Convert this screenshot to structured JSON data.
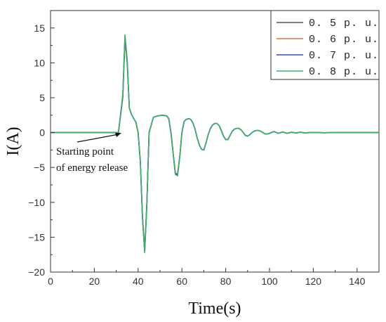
{
  "chart_data": {
    "type": "line",
    "title": "",
    "xlabel": "Time(s)",
    "ylabel": "I(A)",
    "xlim": [
      0,
      150
    ],
    "ylim": [
      -20,
      17.5
    ],
    "x_ticks": [
      0,
      20,
      40,
      60,
      80,
      100,
      120,
      140
    ],
    "y_ticks": [
      -20,
      -15,
      -10,
      -5,
      0,
      5,
      10,
      15
    ],
    "grid": false,
    "legend_position": "top-right",
    "annotation": {
      "lines": [
        "Starting point",
        "of energy release"
      ],
      "point": [
        32,
        0
      ]
    },
    "series": [
      {
        "name": "0. 5  p. u.",
        "color": "#555555",
        "x": [
          0,
          31,
          32,
          33,
          34,
          35,
          36,
          37,
          38,
          39,
          40,
          41,
          42,
          43,
          44,
          45,
          47,
          49,
          51,
          53,
          54,
          55,
          56,
          57,
          58,
          59,
          60,
          61,
          62,
          63,
          64,
          65,
          66,
          67,
          68,
          69,
          70,
          71,
          72,
          73,
          74,
          75,
          76,
          77,
          78,
          79,
          80,
          81,
          82,
          83,
          84,
          85,
          86,
          87,
          88,
          89,
          90,
          91,
          92,
          93,
          94,
          95,
          96,
          97,
          98,
          99,
          100,
          102,
          104,
          106,
          108,
          110,
          112,
          114,
          116,
          120,
          125,
          130,
          140,
          150
        ],
        "values": [
          0,
          0,
          2.5,
          5,
          13.5,
          10,
          3.5,
          2.6,
          2,
          1.5,
          0,
          -4,
          -12,
          -16.8,
          -10,
          0,
          2.2,
          2.4,
          2.5,
          2.4,
          2,
          0,
          -3,
          -5.8,
          -6,
          -3.5,
          0,
          1.6,
          1.9,
          2,
          1.9,
          1.4,
          0.5,
          -0.8,
          -1.8,
          -2.4,
          -2.5,
          -1.5,
          -0.3,
          0.6,
          1.1,
          1.3,
          1.3,
          1,
          0.3,
          -0.5,
          -1,
          -1,
          -0.4,
          0.2,
          0.5,
          0.6,
          0.6,
          0.4,
          0,
          -0.4,
          -0.5,
          -0.3,
          0,
          0.2,
          0.3,
          0.3,
          0.2,
          0,
          -0.2,
          -0.2,
          -0.1,
          0.15,
          -0.1,
          0.1,
          -0.1,
          0.05,
          -0.05,
          0.05,
          -0.03,
          0.02,
          -0.02,
          0.01,
          0,
          0
        ]
      },
      {
        "name": "0. 6  p. u.",
        "color": "#c87a4a",
        "x": [
          0,
          31,
          32,
          33,
          34,
          35,
          36,
          37,
          38,
          39,
          40,
          41,
          42,
          43,
          44,
          45,
          47,
          49,
          51,
          53,
          54,
          55,
          56,
          57,
          58,
          59,
          60,
          61,
          62,
          63,
          64,
          65,
          66,
          67,
          68,
          69,
          70,
          71,
          72,
          73,
          74,
          75,
          76,
          77,
          78,
          79,
          80,
          81,
          82,
          83,
          84,
          85,
          86,
          87,
          88,
          89,
          90,
          91,
          92,
          93,
          94,
          95,
          96,
          97,
          98,
          99,
          100,
          102,
          104,
          106,
          108,
          110,
          112,
          114,
          116,
          120,
          125,
          130,
          140,
          150
        ],
        "values": [
          0,
          0,
          2.6,
          5.2,
          13.7,
          10.2,
          3.5,
          2.6,
          2,
          1.5,
          0,
          -4.1,
          -12.2,
          -17,
          -10.1,
          0,
          2.2,
          2.4,
          2.5,
          2.4,
          2,
          0,
          -3,
          -5.9,
          -6.1,
          -3.5,
          0,
          1.6,
          1.9,
          2,
          1.9,
          1.4,
          0.5,
          -0.8,
          -1.8,
          -2.4,
          -2.5,
          -1.5,
          -0.3,
          0.6,
          1.1,
          1.3,
          1.3,
          1,
          0.3,
          -0.5,
          -1,
          -1,
          -0.4,
          0.2,
          0.5,
          0.6,
          0.6,
          0.4,
          0,
          -0.4,
          -0.5,
          -0.3,
          0,
          0.2,
          0.3,
          0.3,
          0.2,
          0,
          -0.2,
          -0.2,
          -0.1,
          0.15,
          -0.1,
          0.1,
          -0.1,
          0.05,
          -0.05,
          0.05,
          -0.03,
          0.02,
          -0.02,
          0.01,
          0,
          0
        ]
      },
      {
        "name": "0. 7  p. u.",
        "color": "#3a4fc0",
        "x": [
          0,
          31,
          32,
          33,
          34,
          35,
          36,
          37,
          38,
          39,
          40,
          41,
          42,
          43,
          44,
          45,
          47,
          49,
          51,
          53,
          54,
          55,
          56,
          57,
          58,
          59,
          60,
          61,
          62,
          63,
          64,
          65,
          66,
          67,
          68,
          69,
          70,
          71,
          72,
          73,
          74,
          75,
          76,
          77,
          78,
          79,
          80,
          81,
          82,
          83,
          84,
          85,
          86,
          87,
          88,
          89,
          90,
          91,
          92,
          93,
          94,
          95,
          96,
          97,
          98,
          99,
          100,
          102,
          104,
          106,
          108,
          110,
          112,
          114,
          116,
          120,
          125,
          130,
          140,
          150
        ],
        "values": [
          0,
          0,
          2.6,
          5.3,
          13.8,
          10.3,
          3.5,
          2.6,
          2,
          1.5,
          0,
          -4.1,
          -12.3,
          -17.1,
          -10.2,
          0,
          2.2,
          2.4,
          2.5,
          2.4,
          2,
          0,
          -3,
          -5.9,
          -6.1,
          -3.5,
          0,
          1.6,
          1.9,
          2,
          1.9,
          1.4,
          0.5,
          -0.8,
          -1.8,
          -2.4,
          -2.5,
          -1.5,
          -0.3,
          0.6,
          1.1,
          1.3,
          1.3,
          1,
          0.3,
          -0.5,
          -1,
          -1,
          -0.4,
          0.2,
          0.5,
          0.6,
          0.6,
          0.4,
          0,
          -0.4,
          -0.5,
          -0.3,
          0,
          0.2,
          0.3,
          0.3,
          0.2,
          0,
          -0.2,
          -0.2,
          -0.1,
          0.15,
          -0.1,
          0.1,
          -0.1,
          0.05,
          -0.05,
          0.05,
          -0.03,
          0.02,
          -0.02,
          0.01,
          0,
          0
        ]
      },
      {
        "name": "0. 8  p. u.",
        "color": "#3fae6a",
        "x": [
          0,
          31,
          32,
          33,
          34,
          35,
          36,
          37,
          38,
          39,
          40,
          41,
          42,
          43,
          44,
          45,
          47,
          49,
          51,
          53,
          54,
          55,
          56,
          57,
          58,
          59,
          60,
          61,
          62,
          63,
          64,
          65,
          66,
          67,
          68,
          69,
          70,
          71,
          72,
          73,
          74,
          75,
          76,
          77,
          78,
          79,
          80,
          81,
          82,
          83,
          84,
          85,
          86,
          87,
          88,
          89,
          90,
          91,
          92,
          93,
          94,
          95,
          96,
          97,
          98,
          99,
          100,
          102,
          104,
          106,
          108,
          110,
          112,
          114,
          116,
          120,
          125,
          130,
          140,
          150
        ],
        "values": [
          0,
          0,
          2.7,
          5.5,
          14,
          10.5,
          3.5,
          2.6,
          2,
          1.5,
          0,
          -4.2,
          -12.4,
          -17.2,
          -10.3,
          0,
          2.2,
          2.4,
          2.5,
          2.4,
          2,
          0,
          -3,
          -6,
          -6.2,
          -3.5,
          0,
          1.6,
          1.9,
          2,
          1.9,
          1.4,
          0.5,
          -0.8,
          -1.8,
          -2.4,
          -2.5,
          -1.5,
          -0.3,
          0.6,
          1.1,
          1.3,
          1.3,
          1,
          0.3,
          -0.5,
          -1,
          -1,
          -0.4,
          0.2,
          0.5,
          0.6,
          0.6,
          0.4,
          0,
          -0.4,
          -0.5,
          -0.3,
          0,
          0.2,
          0.3,
          0.3,
          0.2,
          0,
          -0.2,
          -0.2,
          -0.1,
          0.15,
          -0.1,
          0.1,
          -0.1,
          0.05,
          -0.05,
          0.05,
          -0.03,
          0.02,
          -0.02,
          0.01,
          0,
          0
        ]
      }
    ]
  }
}
